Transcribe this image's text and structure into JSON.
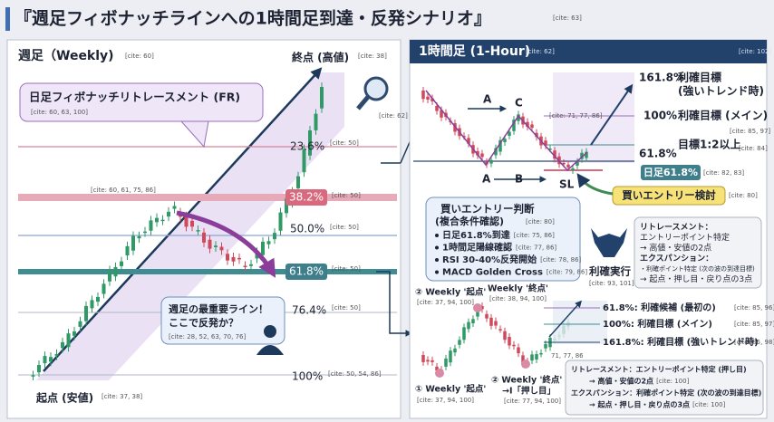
{
  "header": {
    "title": "『週足フィボナッチラインへの1時間足到達・反発シナリオ』",
    "cite": "[cite: 63]"
  },
  "weekly": {
    "title": "週足（Weekly)",
    "title_cite": "[cite: 60]",
    "end_label": "終点 (高値)",
    "end_cite": "[cite: 38]",
    "fr_box": {
      "title": "日足フィボナッチリトレースメント (FR)",
      "cite": "[cite: 60, 63, 100]"
    },
    "magnifier_cite": "[cite: 62]",
    "peak_cite": "[cite: 60, 61, 75, 86]",
    "levels": [
      {
        "label": "23.6%",
        "cite": "[cite: 50]"
      },
      {
        "label": "38.2%",
        "cite": "[cite: 50]"
      },
      {
        "label": "50.0%",
        "cite": "[cite: 50]"
      },
      {
        "label": "61.8%",
        "cite": "[cite: 50]"
      },
      {
        "label": "76.4%",
        "cite": "[cite: 50]"
      },
      {
        "label": "100%",
        "cite": "[cite: 50, 54, 86]"
      }
    ],
    "callout": {
      "lines": [
        "週足の最重要ライン！",
        "ここで反発か？"
      ],
      "cite": "[cite: 28, 52, 63, 70, 76]"
    },
    "start_label": "起点 (安値)",
    "start_cite": "[cite: 37, 38]"
  },
  "hourly": {
    "title": "1時間足 (1-Hour)",
    "title_cite": "[cite: 62]",
    "corner_cite": "[cite: 102]",
    "targets": [
      {
        "pct": "161.8%",
        "text": "利確目標",
        "sub": "(強いトレンド時)"
      },
      {
        "pct": "100%",
        "text": "利確目標 (メイン)",
        "cite": "[cite: 85, 97]"
      },
      {
        "pct": "61.8%",
        "text": "目標1:2以上",
        "cite": "[cite: 84]"
      }
    ],
    "daily_618": {
      "label": "日足61.8%",
      "cite": "[cite: 82, 83]"
    },
    "entry_tag": {
      "label": "買いエントリー検討",
      "cite": "[cite: 80]"
    },
    "wave_labels": [
      "A",
      "C",
      "A",
      "B",
      "SL"
    ],
    "candle_cite": "[cite: 71, 77, 86]",
    "entry_box": {
      "title": "買いエントリー判断",
      "subtitle": "(複合条件確認)",
      "cite": "[cite: 80]",
      "items": [
        {
          "text": "日足61.8%到達",
          "cite": "[cite: 75, 86]"
        },
        {
          "text": "1時間足陽線確認",
          "cite": "[cite: 77, 86]"
        },
        {
          "text": "RSI 30-40%反発開始",
          "cite": "[cite: 78, 86]"
        },
        {
          "text": "MACD Golden Cross",
          "cite": "[cite: 79, 86]"
        }
      ]
    },
    "take_profit": {
      "label": "利確実行",
      "cite": "[cite: 93, 101]"
    },
    "method_box": {
      "lines": [
        "リトレースメント：",
        "エントリーポイント特定",
        "→ 高値・安値の2点",
        "エクスパンション：",
        "・利確ポイント特定 (次の波の到達目標)",
        "→ 起点・押し目・戻り点の3点"
      ]
    },
    "bottom": {
      "start_top": {
        "label": "② Weekly '起点'",
        "cite": "[cite: 37, 94, 100]"
      },
      "end_top": {
        "label": "Weekly '終点'",
        "cite": "[cite: 38, 94, 100]"
      },
      "levels": [
        {
          "text": "61.8%: 利確候補 (最初の)",
          "cite": "[cite: 85, 96]"
        },
        {
          "text": "100%: 利確目標 (メイン)",
          "cite": "[cite: 85, 97]"
        },
        {
          "text": "161.8%: 利確目標 (強いトレンド時)",
          "cite": "[cite: 85, 98]"
        }
      ],
      "candle_cite": "71, 77, 86",
      "start_bottom": {
        "label": "① Weekly '起点'",
        "cite": "[cite: 37, 94, 100]"
      },
      "end_bottom": {
        "lines": [
          "② Weekly '終点'",
          "→I「押し目」"
        ],
        "cite": "[cite: 77, 94, 100]"
      },
      "note_box": {
        "lines": [
          {
            "text": "リトレースメント：エントリーポイント特定 (押し目)"
          },
          {
            "text": "→ 高値・安値の2点",
            "cite": "[cite: 100]"
          },
          {
            "text": "エクスパンション：利確ポイント特定 (次の波の到達目標)"
          },
          {
            "text": "→ 起点・押し目・戻り点の3点",
            "cite": "[cite: 100]"
          }
        ]
      }
    }
  }
}
